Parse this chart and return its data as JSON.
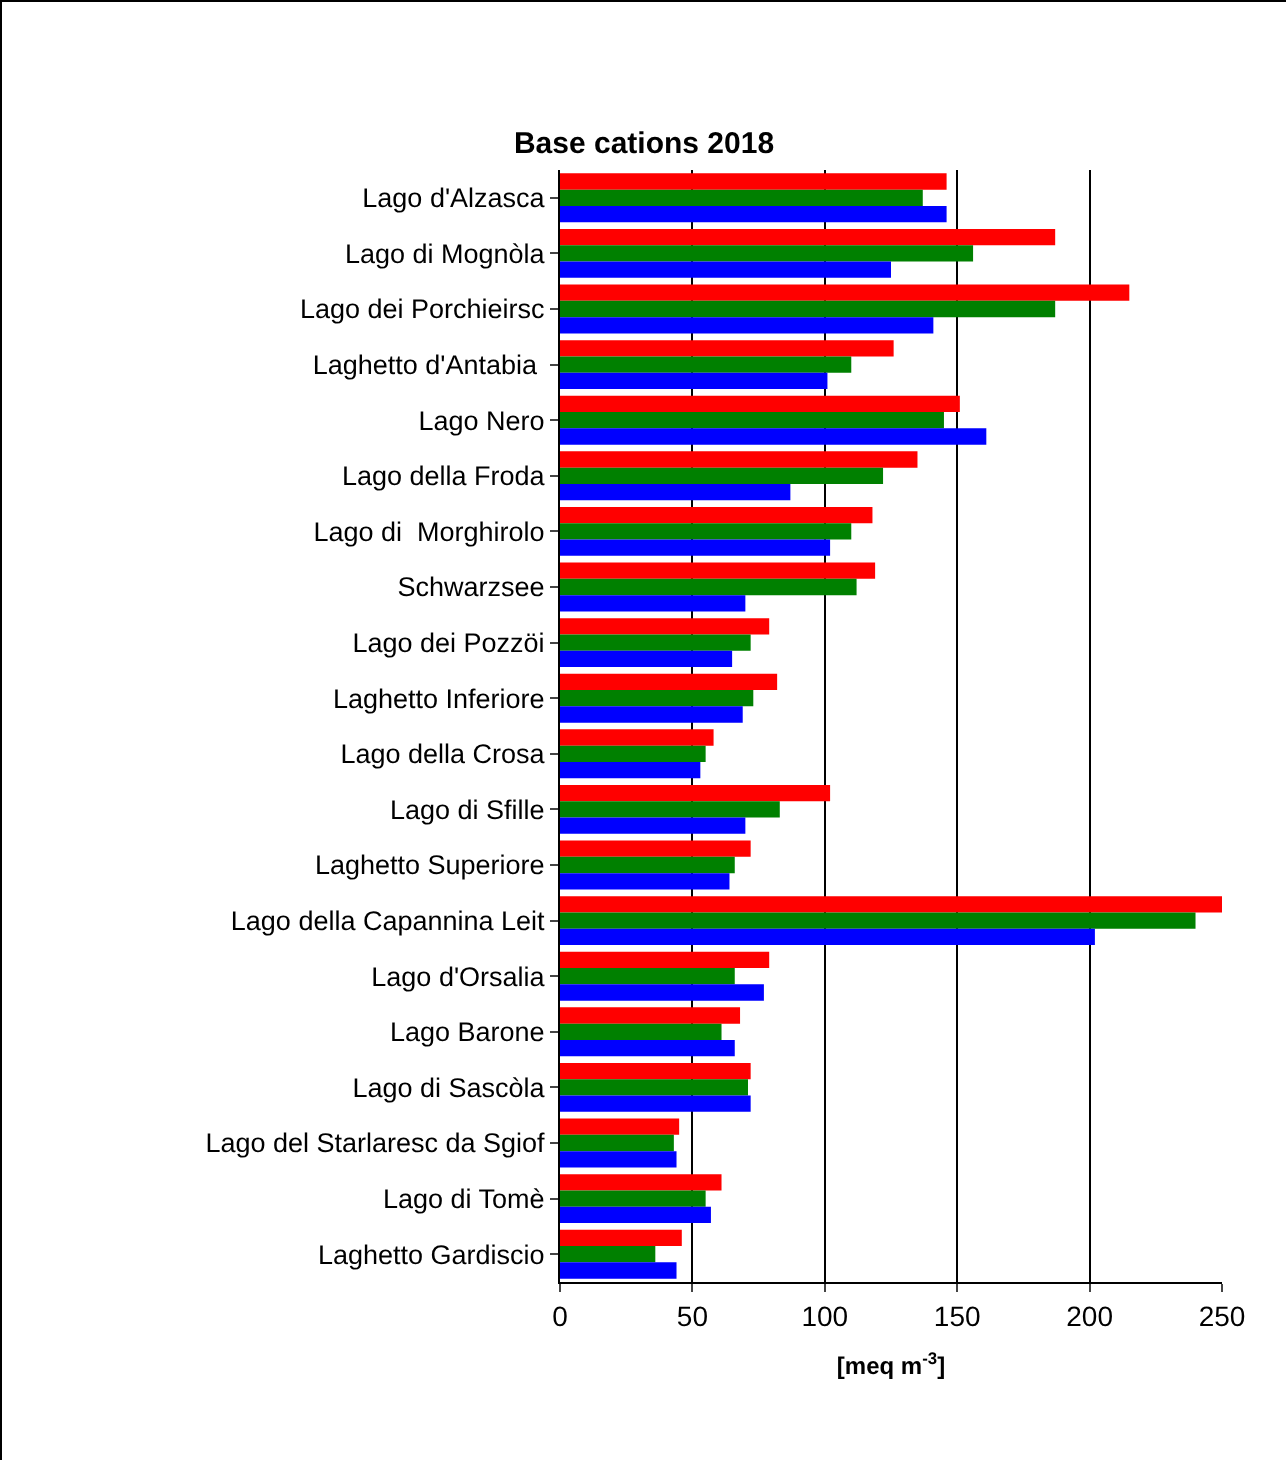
{
  "chart_data": {
    "type": "bar",
    "orientation": "horizontal",
    "title": "Base cations 2018",
    "xlabel": "[meq m$^{-3}$]",
    "categories": [
      "Lago d'Alzasca",
      "Lago di Mognòla",
      "Lago dei Porchieirsc",
      "Laghetto d'Antabia ",
      "Lago Nero",
      "Lago della Froda",
      "Lago di  Morghirolo",
      "Schwarzsee",
      "Lago dei Pozzöi",
      "Laghetto Inferiore",
      "Lago della Crosa",
      "Lago di Sfille",
      "Laghetto Superiore",
      "Lago della Capannina Leit",
      "Lago d'Orsalia",
      "Lago Barone",
      "Lago di Sascòla",
      "Lago del Starlaresc da Sgiof",
      "Lago di Tomè",
      "Laghetto Gardiscio"
    ],
    "series": [
      {
        "color": "#ff0000",
        "values": [
          146,
          187,
          215,
          126,
          151,
          135,
          118,
          119,
          79,
          82,
          58,
          102,
          72,
          250,
          79,
          68,
          72,
          45,
          61,
          46
        ]
      },
      {
        "color": "#008000",
        "values": [
          137,
          156,
          187,
          110,
          145,
          122,
          110,
          112,
          72,
          73,
          55,
          83,
          66,
          240,
          66,
          61,
          71,
          43,
          55,
          36
        ]
      },
      {
        "color": "#0000ff",
        "values": [
          146,
          125,
          141,
          101,
          161,
          87,
          102,
          70,
          65,
          69,
          53,
          70,
          64,
          202,
          77,
          66,
          72,
          44,
          57,
          44
        ]
      }
    ],
    "xlim": [
      0,
      250
    ],
    "xticks": [
      0,
      50,
      100,
      150,
      200,
      250
    ],
    "grid": "x"
  }
}
